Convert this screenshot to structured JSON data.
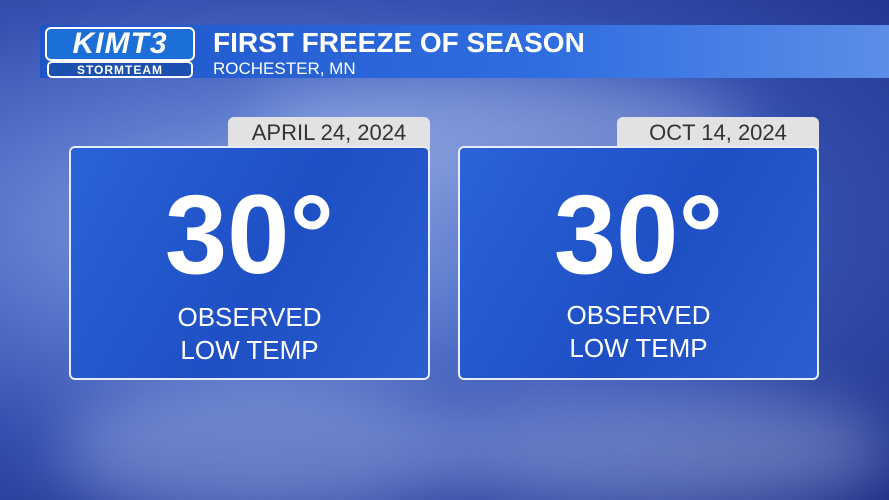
{
  "header": {
    "logo": "KIMT3",
    "logo_sub": "STORMTEAM",
    "title": "FIRST FREEZE OF SEASON",
    "subtitle": "ROCHESTER, MN"
  },
  "cards": [
    {
      "date": "APRIL 24, 2024",
      "value": "30°",
      "label_lines": [
        "OBSERVED",
        "LOW TEMP"
      ]
    },
    {
      "date": "OCT 14, 2024",
      "value": "30°",
      "label_lines": [
        "OBSERVED",
        "LOW TEMP"
      ]
    }
  ]
}
